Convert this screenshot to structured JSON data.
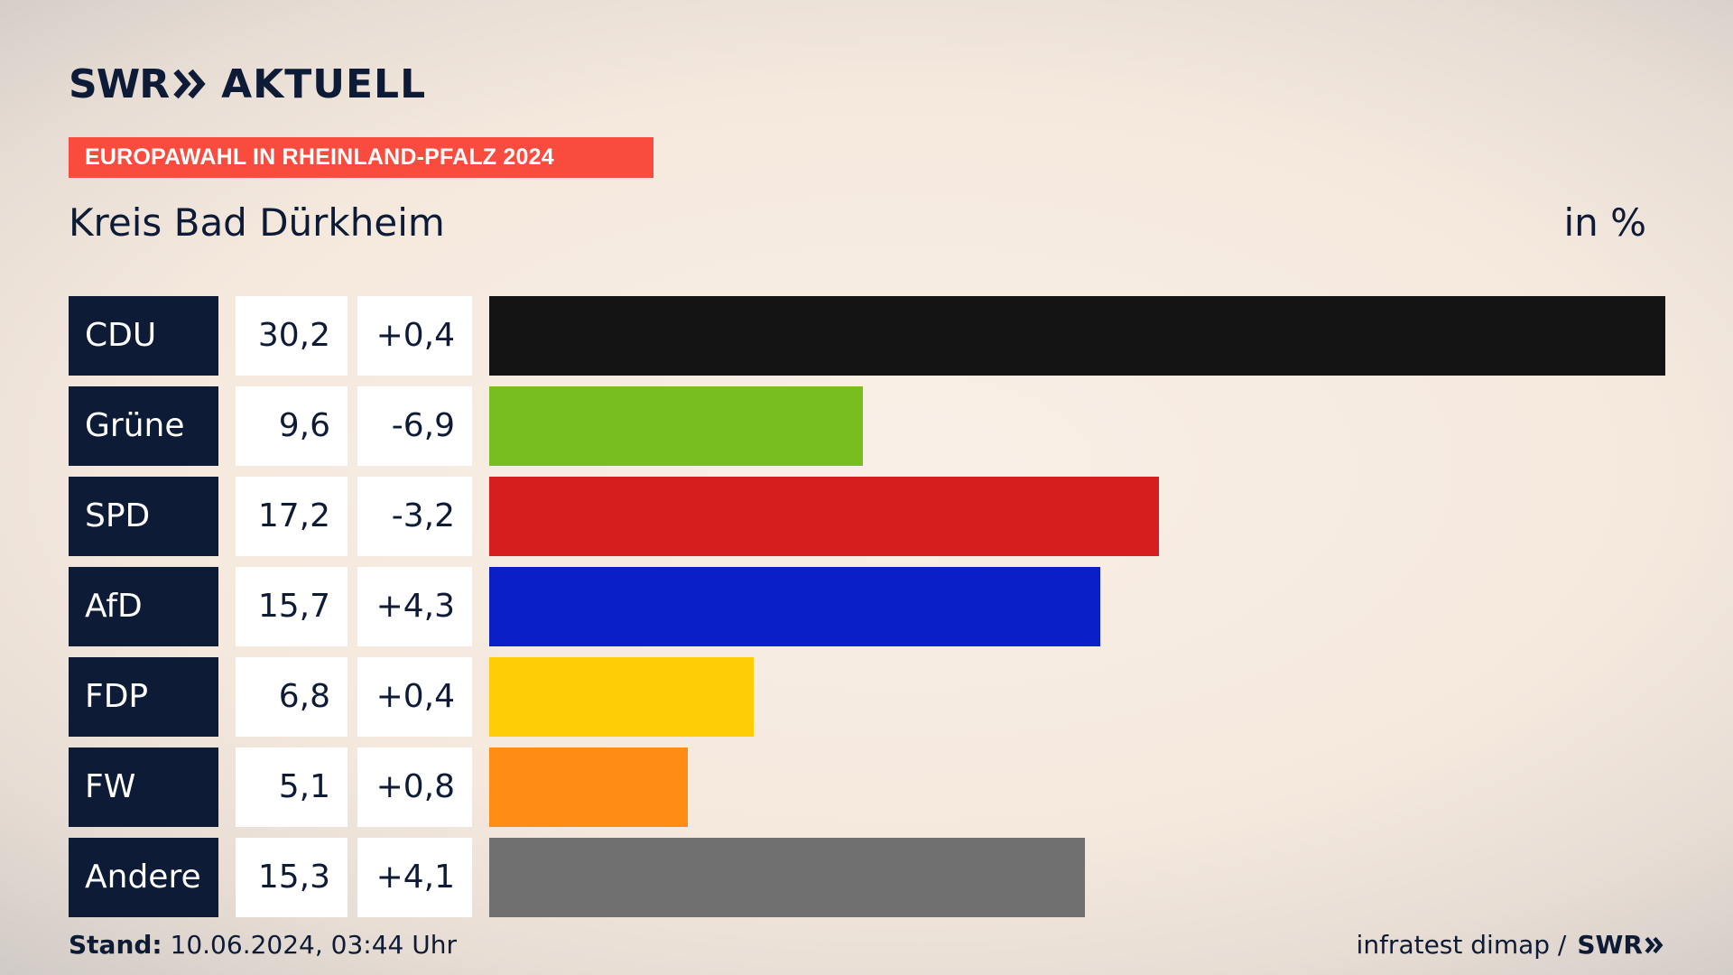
{
  "logo": {
    "brand": "SWR",
    "section": "AKTUELL",
    "icon": "double-chevron-icon"
  },
  "banner": "EUROPAWAHL IN RHEINLAND-PFALZ 2024",
  "subtitle": "Kreis Bad Dürkheim",
  "unit": "in %",
  "chart_data": {
    "type": "bar",
    "orientation": "horizontal",
    "title": "Kreis Bad Dürkheim",
    "unit_label": "in %",
    "categories": [
      "CDU",
      "Grüne",
      "SPD",
      "AfD",
      "FDP",
      "FW",
      "Andere"
    ],
    "values": [
      30.2,
      9.6,
      17.2,
      15.7,
      6.8,
      5.1,
      15.3
    ],
    "value_labels": [
      "30,2",
      "9,6",
      "17,2",
      "15,7",
      "6,8",
      "5,1",
      "15,3"
    ],
    "diff_labels": [
      "+0,4",
      "-6,9",
      "-3,2",
      "+4,3",
      "+0,4",
      "+0,8",
      "+4,1"
    ],
    "colors": [
      "#141414",
      "#78be1e",
      "#d61e1e",
      "#0a1fc8",
      "#ffcd05",
      "#ff8c14",
      "#707070"
    ],
    "xlim": [
      0,
      30.2
    ],
    "grid": false,
    "legend": "none"
  },
  "footer": {
    "stand_label": "Stand:",
    "stand_value": "10.06.2024, 03:44 Uhr",
    "source": "infratest dimap /",
    "brand": "SWR"
  }
}
